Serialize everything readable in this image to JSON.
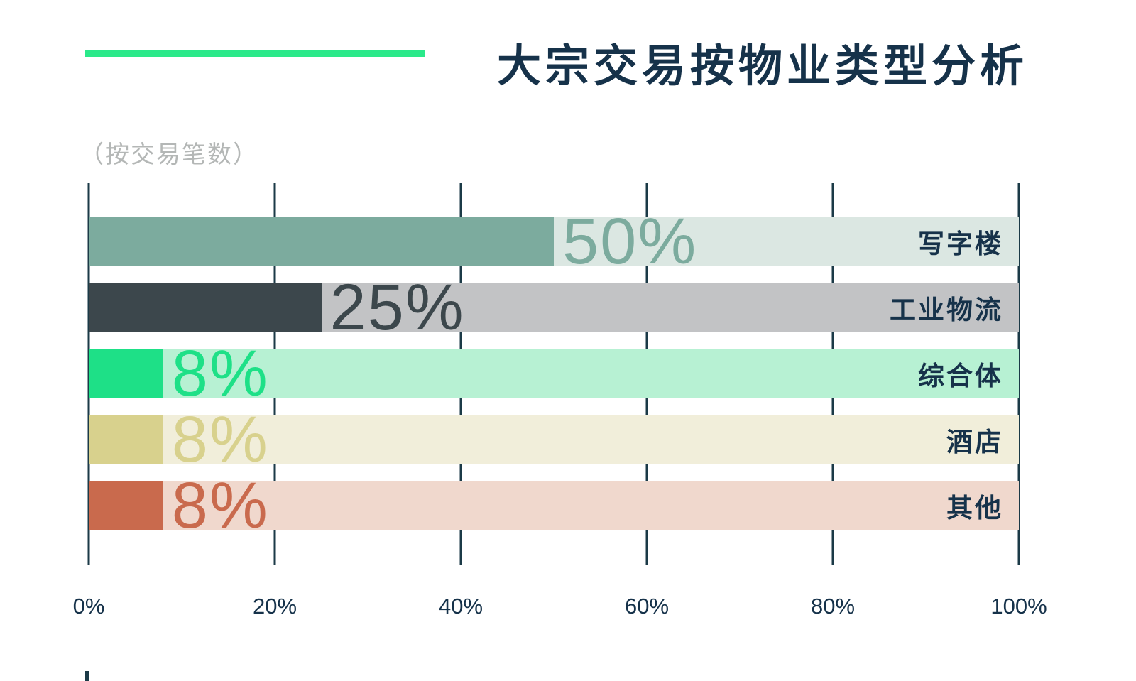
{
  "header": {
    "title": "大宗交易按物业类型分析",
    "subtitle": "（按交易笔数）"
  },
  "colors": {
    "accent": "#2be98a",
    "title_text": "#16324a",
    "subtitle_text": "#b4b7b6",
    "gridline": "#1b3a47"
  },
  "chart_data": {
    "type": "bar",
    "orientation": "horizontal",
    "title": "大宗交易按物业类型分析",
    "subtitle": "（按交易笔数）",
    "categories": [
      "写字楼",
      "工业物流",
      "综合体",
      "酒店",
      "其他"
    ],
    "values": [
      50,
      25,
      8,
      8,
      8
    ],
    "value_labels": [
      "50%",
      "25%",
      "8%",
      "8%",
      "8%"
    ],
    "bar_colors": [
      "#7cab9e",
      "#3c474c",
      "#1ee087",
      "#d8d18d",
      "#c96a4d"
    ],
    "track_colors": [
      "#dbe7e2",
      "#c2c3c5",
      "#b7f1d3",
      "#f1eeda",
      "#f0d8cd"
    ],
    "xlabel": "",
    "ylabel": "",
    "xlim": [
      0,
      100
    ],
    "x_ticks": [
      "0%",
      "20%",
      "40%",
      "60%",
      "80%",
      "100%"
    ],
    "grid": true,
    "legend": false
  }
}
